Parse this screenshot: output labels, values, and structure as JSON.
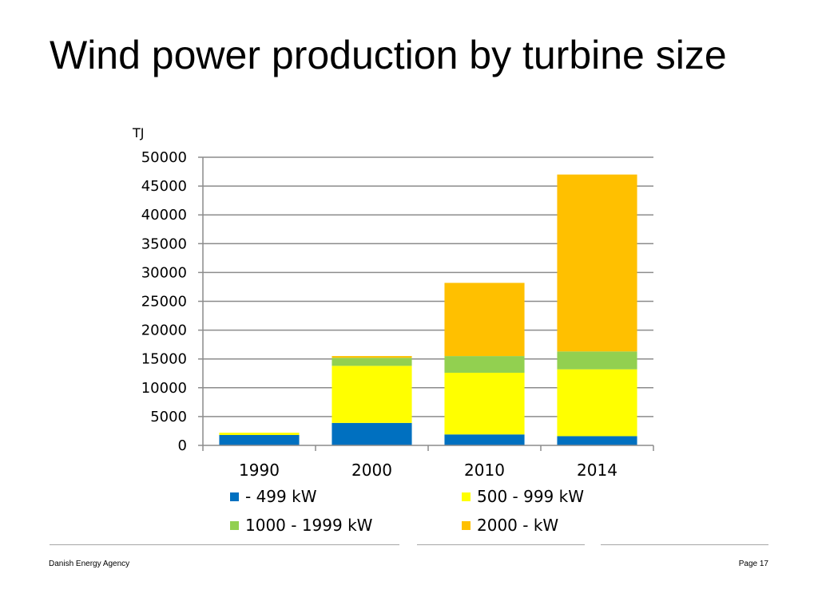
{
  "slide": {
    "title": "Wind power production by turbine size"
  },
  "footer": {
    "left": "Danish Energy Agency",
    "right": "Page 17"
  },
  "chart_data": {
    "type": "bar",
    "stacked": true,
    "title": "",
    "ylabel": "TJ",
    "xlabel": "",
    "ylim": [
      0,
      50000
    ],
    "yticks": [
      "0",
      "5000",
      "10000",
      "15000",
      "20000",
      "25000",
      "30000",
      "35000",
      "40000",
      "45000",
      "50000"
    ],
    "grid": true,
    "legend_position": "bottom",
    "categories": [
      "1990",
      "2000",
      "2010",
      "2014"
    ],
    "series": [
      {
        "name": "- 499 kW",
        "color": "#0070c0",
        "values": [
          1800,
          3900,
          1900,
          1600
        ]
      },
      {
        "name": "500 - 999 kW",
        "color": "#ffff00",
        "values": [
          400,
          9900,
          10700,
          11600
        ]
      },
      {
        "name": "1000 - 1999 kW",
        "color": "#92d050",
        "values": [
          0,
          1400,
          2900,
          3100
        ]
      },
      {
        "name": "2000 - kW",
        "color": "#ffc000",
        "values": [
          0,
          300,
          12700,
          30700
        ]
      }
    ]
  }
}
